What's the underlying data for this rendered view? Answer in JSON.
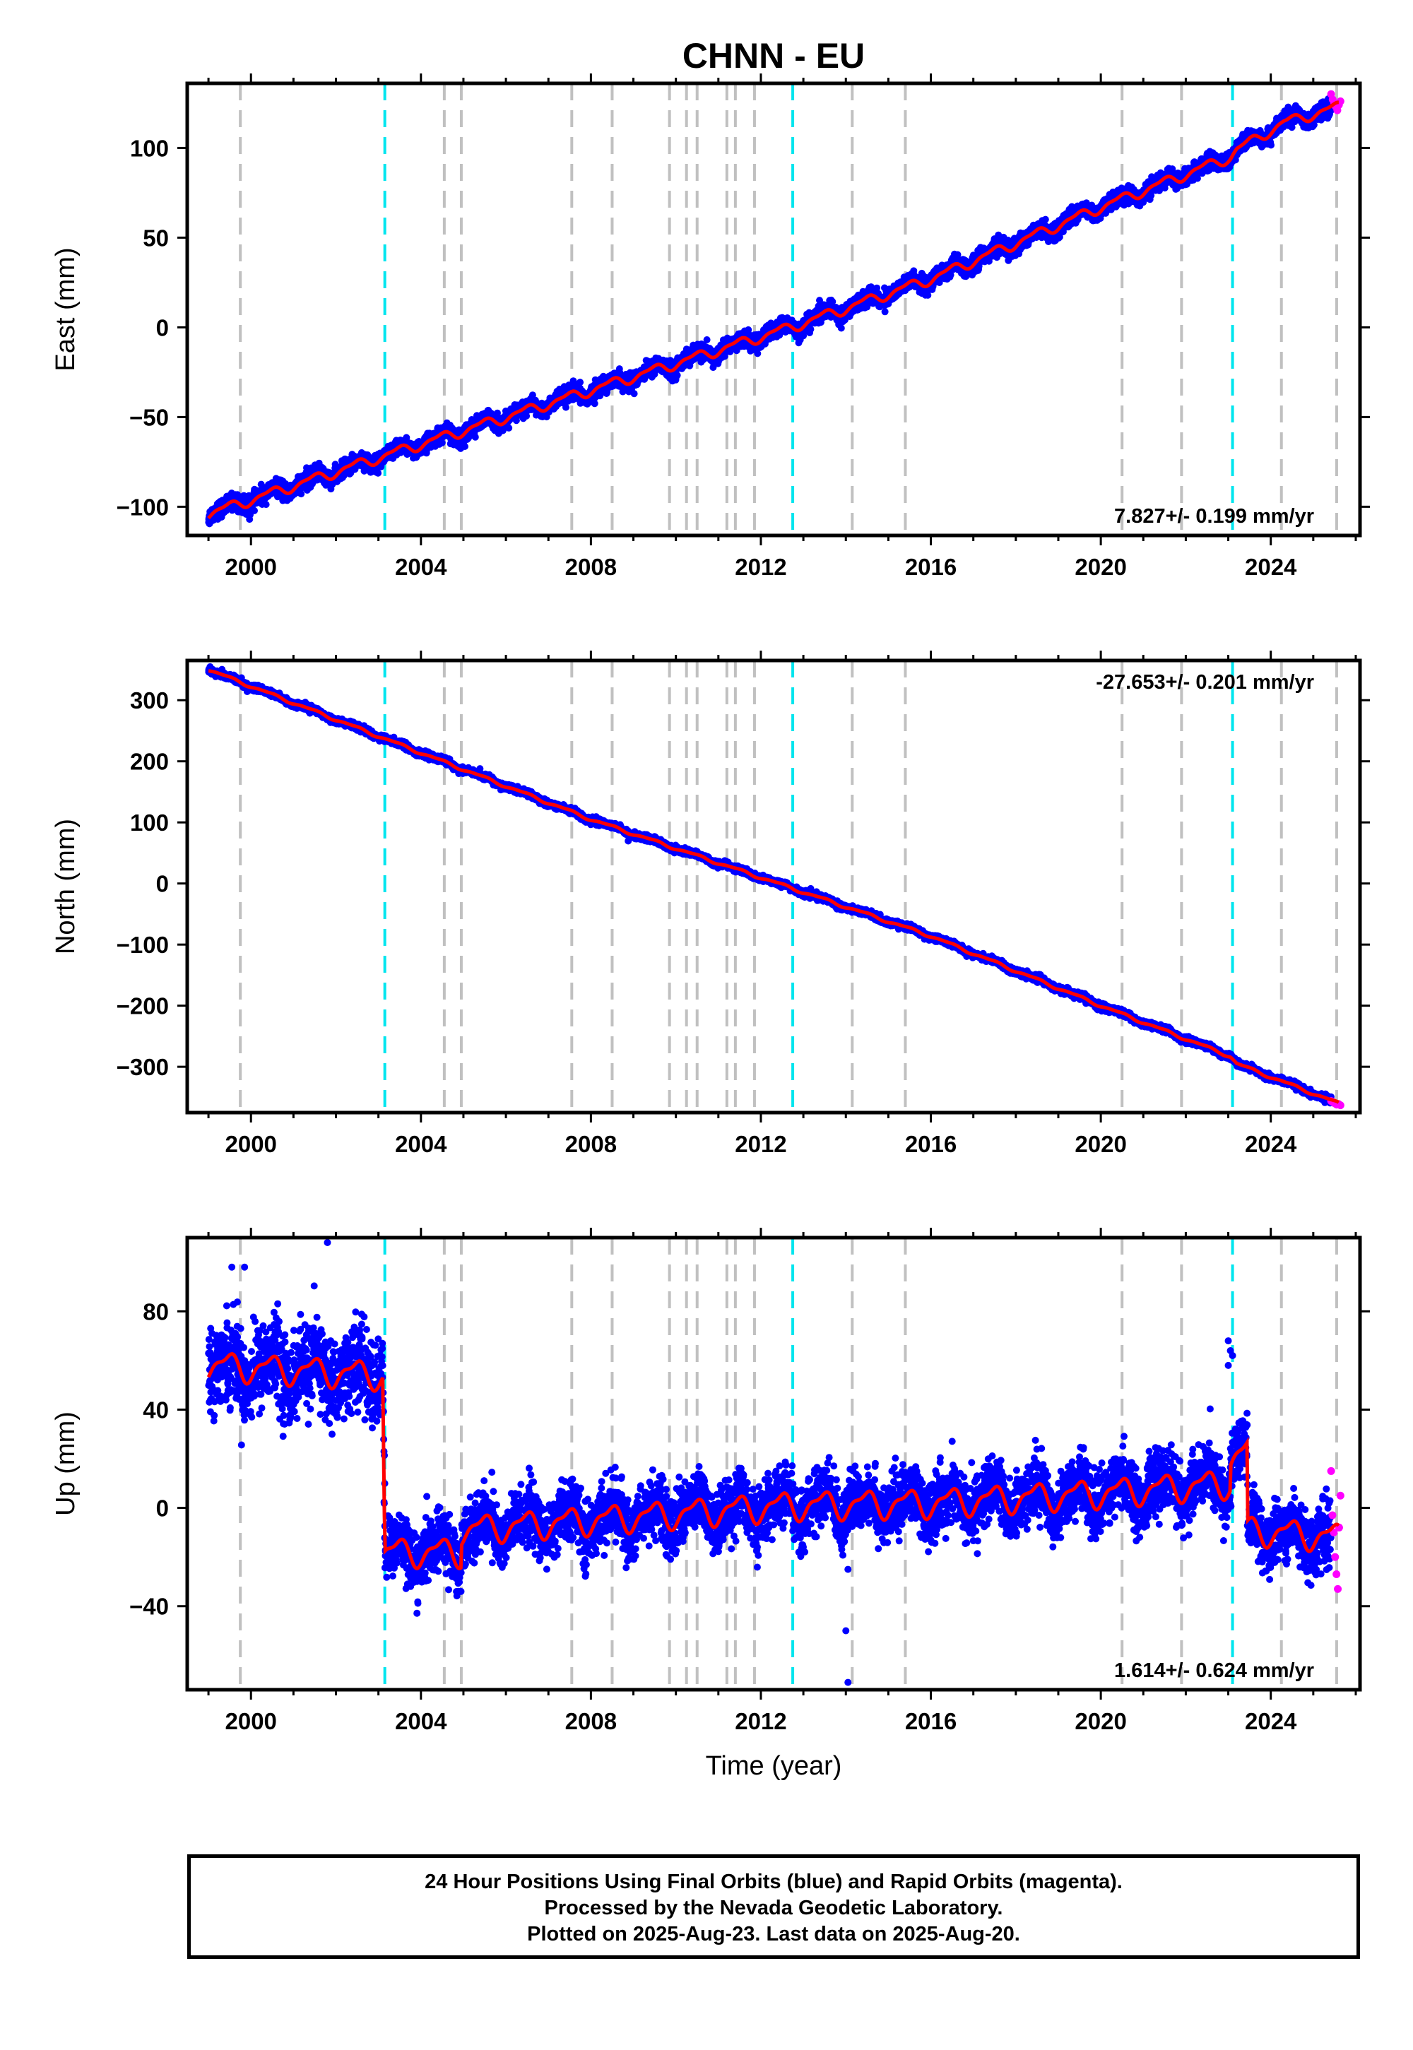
{
  "title": "CHNN - EU",
  "colors": {
    "final": "#0000ff",
    "rapid": "#ff00ff",
    "model": "#ff0000",
    "event_gray": "#c0c0c0",
    "event_cyan": "#00e5ee",
    "frame": "#000000"
  },
  "xlabel": "Time (year)",
  "xticks": [
    "2000",
    "2004",
    "2008",
    "2012",
    "2016",
    "2020",
    "2024"
  ],
  "footer": {
    "line1": "24 Hour Positions Using Final Orbits (blue) and Rapid Orbits (magenta).",
    "line2": "Processed by the Nevada Geodetic Laboratory.",
    "line3": "Plotted on 2025-Aug-23. Last data on 2025-Aug-20."
  },
  "chart_data": [
    {
      "type": "scatter",
      "name": "east",
      "ylabel": "East (mm)",
      "xlim": [
        1998.5,
        2026.1
      ],
      "ylim": [
        -116,
        136
      ],
      "yticks": [
        -100,
        -50,
        0,
        50,
        100
      ],
      "rate_label": "7.827+/- 0.199 mm/yr",
      "rate_position": "bottom-right",
      "model_breakpoints": [
        [
          1999.0,
          -104
        ],
        [
          2003.15,
          -71.5
        ],
        [
          2008,
          -35
        ],
        [
          2012.7,
          0
        ],
        [
          2016,
          27
        ],
        [
          2020,
          67
        ],
        [
          2023.05,
          95
        ],
        [
          2023.2,
          99
        ],
        [
          2024.3,
          114
        ],
        [
          2025.6,
          123
        ]
      ],
      "seasonal_amplitude": 2.5,
      "scatter_sigma": 2.2,
      "final_range": [
        1999.0,
        2025.42
      ],
      "rapid_range": [
        2025.42,
        2025.64
      ],
      "rapid_values": [
        130,
        127,
        125,
        123,
        121,
        124,
        126
      ]
    },
    {
      "type": "scatter",
      "name": "north",
      "ylabel": "North (mm)",
      "xlim": [
        1998.5,
        2026.1
      ],
      "ylim": [
        -375,
        365
      ],
      "yticks": [
        -300,
        -200,
        -100,
        0,
        100,
        200,
        300
      ],
      "rate_label": "-27.653+/- 0.201 mm/yr",
      "rate_position": "top-right",
      "model_breakpoints": [
        [
          1999.0,
          350
        ],
        [
          2003.15,
          237
        ],
        [
          2008,
          105
        ],
        [
          2012.7,
          -7
        ],
        [
          2016,
          -86
        ],
        [
          2020,
          -200
        ],
        [
          2023.05,
          -283
        ],
        [
          2023.2,
          -295
        ],
        [
          2025.6,
          -360
        ]
      ],
      "seasonal_amplitude": 2.0,
      "scatter_sigma": 2.5,
      "final_range": [
        1999.0,
        2025.42
      ],
      "rapid_range": [
        2025.42,
        2025.64
      ],
      "rapid_values": [
        -356,
        -358,
        -360,
        -362,
        -361,
        -363
      ]
    },
    {
      "type": "scatter",
      "name": "up",
      "ylabel": "Up (mm)",
      "xlim": [
        1998.5,
        2026.1
      ],
      "ylim": [
        -74,
        110
      ],
      "yticks": [
        -40,
        0,
        40,
        80
      ],
      "rate_label": "1.614+/- 0.624 mm/yr",
      "rate_position": "bottom-right",
      "model_breakpoints": [
        [
          1999.0,
          58
        ],
        [
          2003.1,
          54
        ],
        [
          2003.15,
          -18
        ],
        [
          2004.95,
          -18
        ],
        [
          2004.95,
          -9
        ],
        [
          2008,
          -5
        ],
        [
          2012.7,
          1
        ],
        [
          2016,
          2
        ],
        [
          2020,
          6
        ],
        [
          2023.05,
          10
        ],
        [
          2023.05,
          20
        ],
        [
          2023.45,
          23
        ],
        [
          2023.45,
          -9
        ],
        [
          2025.6,
          -12
        ]
      ],
      "seasonal_amplitude": 5.0,
      "scatter_sigma": 6.0,
      "final_range": [
        1999.0,
        2025.42
      ],
      "rapid_range": [
        2025.42,
        2025.64
      ],
      "rapid_values": [
        15,
        -3,
        -10,
        -20,
        -27,
        -33,
        -8,
        5
      ],
      "outliers": [
        [
          1999.55,
          98
        ],
        [
          1999.85,
          98
        ],
        [
          2001.8,
          108
        ],
        [
          2014.0,
          -50
        ],
        [
          2014.05,
          -71
        ],
        [
          2014.05,
          -25
        ],
        [
          2023.0,
          68
        ],
        [
          2023.05,
          64
        ],
        [
          2023.0,
          58
        ],
        [
          2023.1,
          62
        ]
      ]
    }
  ],
  "event_lines": {
    "gray": [
      1999.75,
      2004.55,
      2004.95,
      2007.55,
      2008.5,
      2009.85,
      2010.25,
      2010.5,
      2011.2,
      2011.4,
      2011.85,
      2014.15,
      2015.4,
      2020.5,
      2021.9,
      2024.25,
      2025.55
    ],
    "cyan": [
      2003.15,
      2012.75,
      2023.1
    ]
  }
}
